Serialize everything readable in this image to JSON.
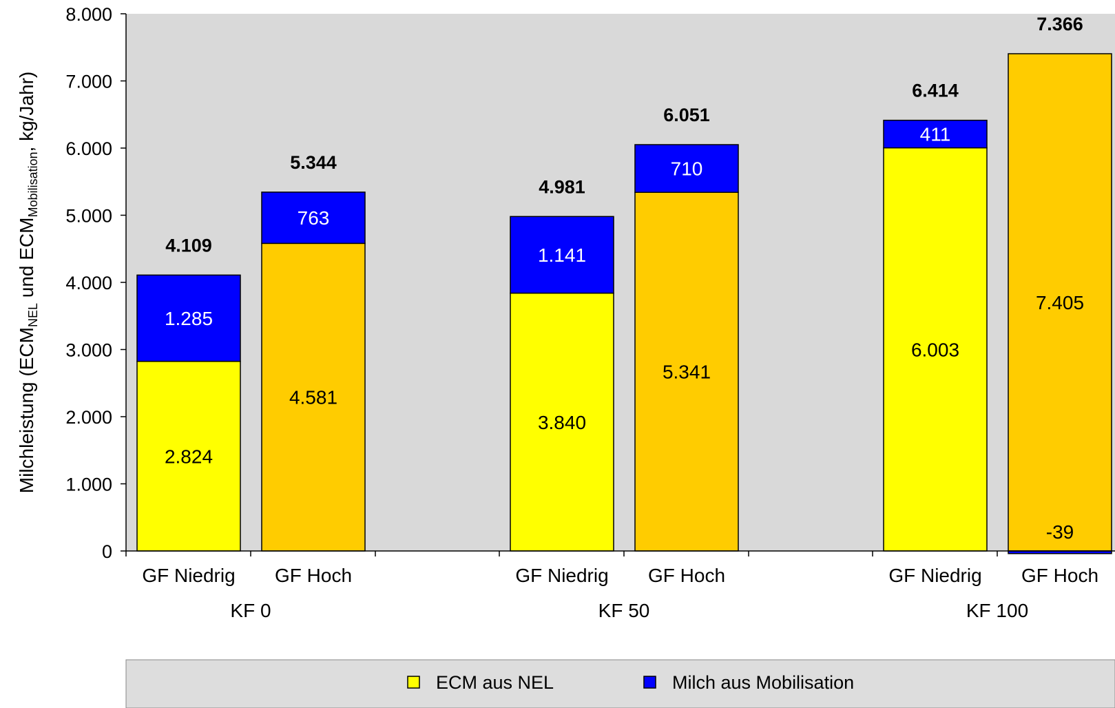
{
  "chart_data": {
    "type": "bar",
    "stacked": true,
    "ylabel": {
      "prefix": "Milchleistung (ECM",
      "sub1": "NEL",
      "mid": " und ECM",
      "sub2": "Mobilisation",
      "suffix": ", kg/Jahr)"
    },
    "ylim": [
      0,
      8000
    ],
    "yticks": [
      {
        "value": 0,
        "label": "0"
      },
      {
        "value": 1000,
        "label": "1.000"
      },
      {
        "value": 2000,
        "label": "2.000"
      },
      {
        "value": 3000,
        "label": "3.000"
      },
      {
        "value": 4000,
        "label": "4.000"
      },
      {
        "value": 5000,
        "label": "5.000"
      },
      {
        "value": 6000,
        "label": "6.000"
      },
      {
        "value": 7000,
        "label": "7.000"
      },
      {
        "value": 8000,
        "label": "8.000"
      }
    ],
    "grid": false,
    "legend_placement": "bottom",
    "groups": [
      {
        "label": "KF 0",
        "bars": [
          {
            "label": "GF Niedrig",
            "nel": 2824,
            "nel_label": "2.824",
            "mob": 1285,
            "mob_label": "1.285",
            "total_label": "4.109",
            "fill": "#ffff00"
          },
          {
            "label": "GF Hoch",
            "nel": 4581,
            "nel_label": "4.581",
            "mob": 763,
            "mob_label": "763",
            "total_label": "5.344",
            "fill": "#ffcc00"
          }
        ]
      },
      {
        "label": "KF 50",
        "bars": [
          {
            "label": "GF Niedrig",
            "nel": 3840,
            "nel_label": "3.840",
            "mob": 1141,
            "mob_label": "1.141",
            "total_label": "4.981",
            "fill": "#ffff00"
          },
          {
            "label": "GF Hoch",
            "nel": 5341,
            "nel_label": "5.341",
            "mob": 710,
            "mob_label": "710",
            "total_label": "6.051",
            "fill": "#ffcc00"
          }
        ]
      },
      {
        "label": "KF 100",
        "bars": [
          {
            "label": "GF Niedrig",
            "nel": 6003,
            "nel_label": "6.003",
            "mob": 411,
            "mob_label": "411",
            "total_label": "6.414",
            "fill": "#ffff00"
          },
          {
            "label": "GF Hoch",
            "nel": 7405,
            "nel_label": "7.405",
            "mob": -39,
            "mob_label": "-39",
            "total_label": "7.366",
            "fill": "#ffcc00"
          }
        ]
      }
    ],
    "legend": [
      {
        "label": "ECM aus NEL",
        "color": "#ffff00"
      },
      {
        "label": "Milch aus Mobilisation",
        "color": "#0000ff"
      }
    ],
    "colors": {
      "plot_background": "#d9d9d9",
      "mobilisation": "#0000ff",
      "legend_background": "#dddddd"
    }
  }
}
